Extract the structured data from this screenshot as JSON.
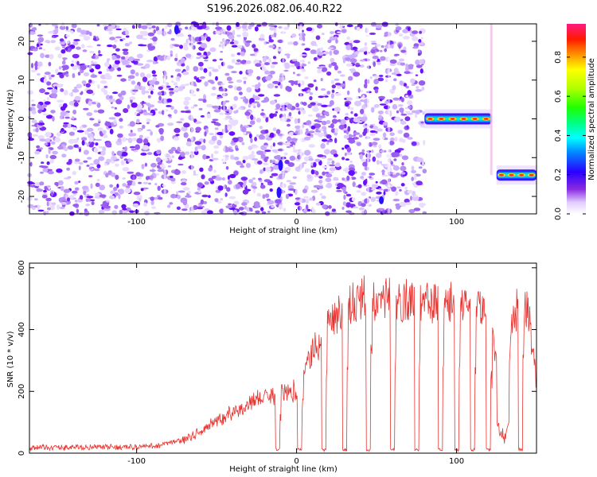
{
  "title": "S196.2026.082.06.40.R22",
  "chart_data": [
    {
      "type": "heatmap",
      "xlabel": "Height of straight line (km)",
      "ylabel": "Frequency (Hz)",
      "xlim": [
        -167,
        150
      ],
      "ylim": [
        -24.5,
        24.5
      ],
      "xticks": [
        -100,
        0,
        100
      ],
      "yticks": [
        -20,
        -10,
        0,
        10,
        20
      ],
      "colorbar": {
        "label": "Normalized spectral amplitude",
        "range": [
          0,
          0.97
        ],
        "ticks": [
          0.0,
          0.2,
          0.4,
          0.6,
          0.8
        ],
        "tick_labels": [
          "0.0",
          "0.2",
          "0.4",
          "0.6",
          "0.8"
        ]
      },
      "features": [
        {
          "name": "noise region",
          "x": [
            -167,
            80
          ],
          "freq": [
            -24.5,
            24.5
          ],
          "amplitude": "low"
        },
        {
          "name": "tone 1",
          "x": [
            80,
            122
          ],
          "freq": 0,
          "peak_amplitude": 0.97
        },
        {
          "name": "tone 2",
          "x": [
            125,
            150
          ],
          "freq": -14.5,
          "peak_amplitude": 0.97
        }
      ]
    },
    {
      "type": "line",
      "xlabel": "Height of straight line (km)",
      "ylabel": "SNR (10 * v/v)",
      "xlim": [
        -167,
        150
      ],
      "ylim": [
        0,
        615
      ],
      "xticks": [
        -100,
        0,
        100
      ],
      "yticks": [
        0,
        200,
        400,
        600
      ],
      "color": "#e8322e",
      "envelope": {
        "x": [
          -167,
          -100,
          -85,
          -70,
          -55,
          -40,
          -25,
          -10,
          0,
          10,
          20,
          30,
          40,
          50,
          60,
          70,
          80,
          90,
          100,
          110,
          120,
          130,
          135,
          140,
          145,
          150
        ],
        "snr": [
          18,
          20,
          25,
          45,
          90,
          140,
          180,
          200,
          210,
          340,
          440,
          490,
          520,
          530,
          520,
          510,
          505,
          510,
          500,
          490,
          470,
          130,
          460,
          510,
          470,
          240
        ]
      },
      "dropouts_x": [
        -12,
        2,
        17,
        30,
        45,
        60,
        75,
        90,
        100,
        110,
        120,
        140
      ]
    }
  ]
}
